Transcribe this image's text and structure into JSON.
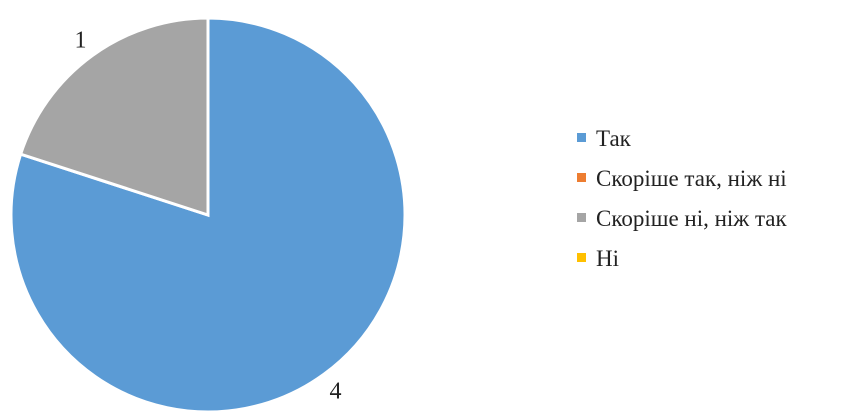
{
  "chart_data": {
    "type": "pie",
    "categories": [
      "Так",
      "Скоріше так, ніж ні",
      "Скоріше ні, ніж так",
      "Ні"
    ],
    "values": [
      4,
      0,
      1,
      0
    ],
    "colors": [
      "#5b9bd5",
      "#ed7d31",
      "#a5a5a5",
      "#ffc000"
    ],
    "data_labels": [
      "4",
      "",
      "1",
      ""
    ],
    "legend": {
      "placement": "right"
    },
    "start_angle_deg": 0,
    "direction": "clockwise"
  }
}
